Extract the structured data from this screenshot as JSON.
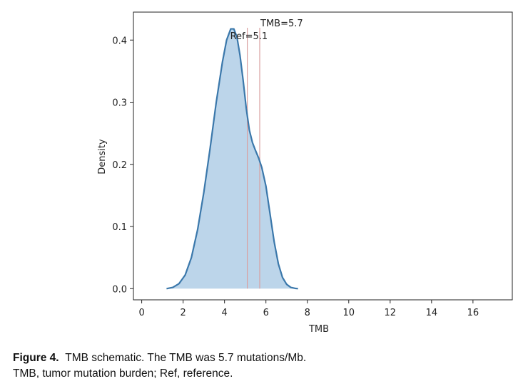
{
  "chart_data": {
    "type": "area",
    "title": "",
    "xlabel": "TMB",
    "ylabel": "Density",
    "xlim": [
      -0.4,
      17.9
    ],
    "ylim": [
      -0.018,
      0.445
    ],
    "xticks": [
      0,
      2,
      4,
      6,
      8,
      10,
      12,
      14,
      16
    ],
    "yticks": [
      0.0,
      0.1,
      0.2,
      0.3,
      0.4
    ],
    "ytick_labels": [
      "0.0",
      "0.1",
      "0.2",
      "0.3",
      "0.4"
    ],
    "grid": false,
    "fill_color": "#bcd5ea",
    "line_color": "#3b78ab",
    "ref_line_color": "#d9a0a0",
    "series": [
      {
        "x": [
          1.2,
          1.5,
          1.8,
          2.1,
          2.4,
          2.7,
          3.0,
          3.3,
          3.6,
          3.9,
          4.1,
          4.3,
          4.45,
          4.6,
          4.75,
          4.9,
          5.05,
          5.2,
          5.35,
          5.5,
          5.65,
          5.8,
          6.0,
          6.2,
          6.4,
          6.6,
          6.8,
          7.0,
          7.2,
          7.4,
          7.55
        ],
        "y": [
          0.0,
          0.002,
          0.008,
          0.022,
          0.05,
          0.095,
          0.155,
          0.225,
          0.3,
          0.365,
          0.4,
          0.418,
          0.418,
          0.405,
          0.375,
          0.335,
          0.29,
          0.255,
          0.235,
          0.222,
          0.21,
          0.195,
          0.165,
          0.12,
          0.075,
          0.04,
          0.018,
          0.007,
          0.002,
          0.0005,
          0.0
        ]
      }
    ],
    "reference_lines": [
      {
        "x": 5.1,
        "label": "Ref=5.1"
      },
      {
        "x": 5.7,
        "label": "TMB=5.7"
      }
    ]
  },
  "caption": {
    "label": "Figure 4.",
    "text": "TMB schematic. The TMB was 5.7 mutations/Mb.",
    "line2": "TMB, tumor mutation burden; Ref, reference."
  }
}
